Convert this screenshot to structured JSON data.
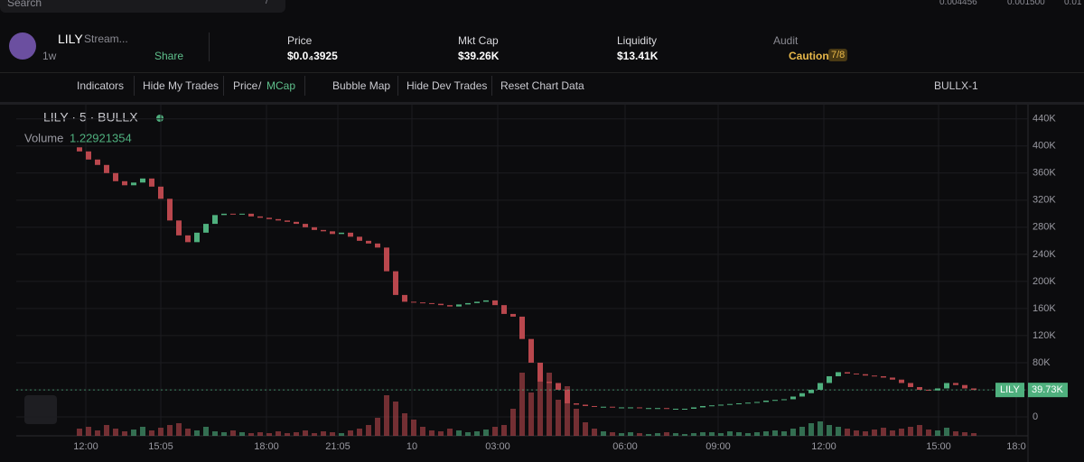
{
  "top": {
    "search": "Search",
    "shortcut": "/",
    "tickers": [
      "0.004456",
      "0.001500",
      "0.01"
    ]
  },
  "token": {
    "symbol": "LILY",
    "name": "Stream...",
    "age": "1w",
    "share": "Share"
  },
  "stats": [
    {
      "label": "Price",
      "value": "$0.0₄3925"
    },
    {
      "label": "Mkt Cap",
      "value": "$39.26K"
    },
    {
      "label": "Liquidity",
      "value": "$13.41K"
    }
  ],
  "audit": {
    "label": "Audit",
    "status": "Caution",
    "score": "7/8"
  },
  "toolbar": {
    "indicators": "Indicators",
    "hide_my_trades": "Hide My Trades",
    "price": "Price",
    "separator": "/",
    "mcap": "MCap",
    "bubble_map": "Bubble Map",
    "hide_dev_trades": "Hide Dev Trades",
    "reset": "Reset Chart Data",
    "source": "BULLX-1"
  },
  "chart_data": {
    "type": "candlestick",
    "title": "LILY · 5 · BULLX",
    "volume_label": "Volume",
    "volume_value": "1.22921354",
    "xlim": [
      -7,
      105
    ],
    "xticks": [
      {
        "value": 0.7,
        "label": "12:00"
      },
      {
        "value": 9,
        "label": "15:05"
      },
      {
        "value": 20.7,
        "label": "18:00"
      },
      {
        "value": 28.6,
        "label": "21:05"
      },
      {
        "value": 36.8,
        "label": "10"
      },
      {
        "value": 46.3,
        "label": "03:00"
      },
      {
        "value": 60.4,
        "label": "06:00"
      },
      {
        "value": 70.7,
        "label": "09:00"
      },
      {
        "value": 82.4,
        "label": "12:00"
      },
      {
        "value": 95.1,
        "label": "15:00"
      },
      {
        "value": 103.7,
        "label": "18:0"
      }
    ],
    "ylim": [
      -28000,
      461000
    ],
    "yticks": [
      0,
      {
        "value": 40000,
        "label": "40K"
      },
      {
        "value": 80000,
        "label": "80K"
      },
      {
        "value": 120000,
        "label": "120K"
      },
      {
        "value": 160000,
        "label": "160K"
      },
      {
        "value": 200000,
        "label": "200K"
      },
      {
        "value": 240000,
        "label": "240K"
      },
      {
        "value": 280000,
        "label": "280K"
      },
      {
        "value": 320000,
        "label": "320K"
      },
      {
        "value": 360000,
        "label": "360K"
      },
      {
        "value": 400000,
        "label": "400K"
      },
      {
        "value": 440000,
        "label": "440K"
      }
    ],
    "up_color": "#4fb07e",
    "down_color": "#b9474d",
    "open": [
      398000,
      392000,
      380000,
      372000,
      360000,
      348000,
      342000,
      346000,
      352000,
      340000,
      322000,
      290000,
      268000,
      258000,
      272000,
      285000,
      298000,
      300000,
      299000,
      300000,
      296000,
      294000,
      292000,
      290000,
      288000,
      285000,
      280000,
      276000,
      274000,
      270000,
      272000,
      266000,
      260000,
      256000,
      250000,
      215000,
      180000,
      170000,
      169000,
      168000,
      167000,
      165000,
      163000,
      166000,
      168000,
      170000,
      172000,
      165000,
      152000,
      148000,
      115000,
      80000,
      52000,
      50000,
      40000,
      20000,
      18000,
      16000,
      15000,
      15000,
      14000,
      14000,
      14000,
      13000,
      13000,
      13000,
      12000,
      12000,
      12000,
      14000,
      16000,
      17000,
      18000,
      19000,
      20000,
      21000,
      22000,
      24000,
      25000,
      26000,
      30000,
      35000,
      40000,
      50000,
      60000,
      66000,
      64000,
      63000,
      61000,
      60000,
      58000,
      55000,
      50000,
      44000,
      40000,
      39000,
      42000,
      50000,
      47000,
      42000
    ],
    "close": [
      392000,
      380000,
      372000,
      360000,
      348000,
      342000,
      346000,
      352000,
      340000,
      322000,
      290000,
      268000,
      258000,
      272000,
      285000,
      298000,
      300000,
      299000,
      300000,
      296000,
      294000,
      292000,
      290000,
      288000,
      285000,
      280000,
      276000,
      274000,
      270000,
      272000,
      266000,
      260000,
      256000,
      250000,
      215000,
      180000,
      170000,
      169000,
      168000,
      167000,
      165000,
      163000,
      166000,
      168000,
      170000,
      172000,
      165000,
      152000,
      148000,
      115000,
      80000,
      52000,
      50000,
      40000,
      20000,
      18000,
      16000,
      15000,
      15000,
      14000,
      14000,
      14000,
      13000,
      13000,
      13000,
      12000,
      12000,
      12000,
      14000,
      16000,
      17000,
      18000,
      19000,
      20000,
      21000,
      22000,
      24000,
      25000,
      26000,
      30000,
      35000,
      40000,
      50000,
      60000,
      66000,
      64000,
      63000,
      61000,
      60000,
      58000,
      55000,
      50000,
      44000,
      40000,
      39000,
      42000,
      50000,
      47000,
      42000,
      39730
    ],
    "volume": [
      8,
      10,
      6,
      12,
      8,
      5,
      7,
      10,
      6,
      9,
      12,
      14,
      8,
      6,
      10,
      5,
      4,
      6,
      4,
      3,
      4,
      3,
      5,
      3,
      4,
      6,
      3,
      5,
      4,
      3,
      6,
      8,
      12,
      20,
      45,
      38,
      25,
      18,
      10,
      6,
      5,
      8,
      6,
      4,
      5,
      7,
      10,
      12,
      30,
      70,
      48,
      60,
      70,
      40,
      55,
      30,
      15,
      8,
      5,
      4,
      3,
      4,
      3,
      2,
      3,
      4,
      3,
      2,
      3,
      4,
      4,
      3,
      5,
      4,
      3,
      4,
      5,
      6,
      5,
      8,
      10,
      14,
      16,
      12,
      10,
      8,
      6,
      5,
      7,
      9,
      6,
      8,
      10,
      12,
      7,
      6,
      9,
      5,
      4,
      3
    ],
    "last_price": {
      "symbol": "LILY",
      "value": 39730,
      "label": "39.73K"
    }
  }
}
